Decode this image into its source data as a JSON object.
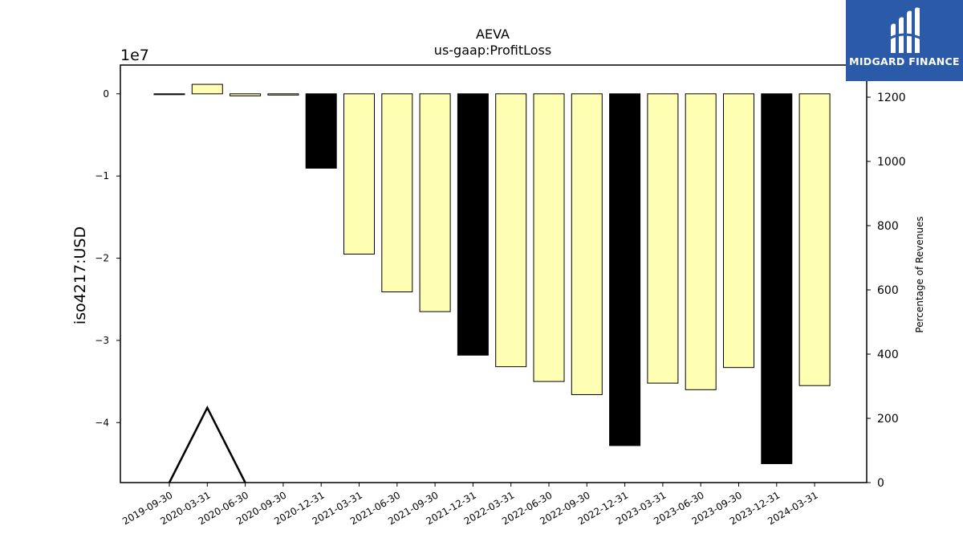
{
  "chart_data": {
    "type": "bar",
    "title": "AEVA",
    "subtitle": "us-gaap:ProfitLoss",
    "ylabel": "iso4217:USD",
    "y_offset_label": "1e7",
    "y2label": "Percentage of Revenues",
    "categories": [
      "2019-09-30",
      "2020-03-31",
      "2020-06-30",
      "2020-09-30",
      "2020-12-31",
      "2021-03-31",
      "2021-06-30",
      "2021-09-30",
      "2021-12-31",
      "2022-03-31",
      "2022-06-30",
      "2022-09-30",
      "2022-12-31",
      "2023-03-31",
      "2023-06-30",
      "2023-09-30",
      "2023-12-31",
      "2024-03-31"
    ],
    "values": [
      -100000,
      1150000,
      -250000,
      -150000,
      -9050000,
      -19500000,
      -24100000,
      -26500000,
      -31800000,
      -33200000,
      -35000000,
      -36600000,
      -42800000,
      -35200000,
      -36000000,
      -33300000,
      -45000000,
      -35500000
    ],
    "bar_colors": [
      "#ffffb3",
      "#ffffb3",
      "#ffffb3",
      "#ffffb3",
      "#000000",
      "#ffffb3",
      "#ffffb3",
      "#ffffb3",
      "#000000",
      "#ffffb3",
      "#ffffb3",
      "#ffffb3",
      "#000000",
      "#ffffb3",
      "#ffffb3",
      "#ffffb3",
      "#000000",
      "#ffffb3"
    ],
    "ylim": [
      -47300000,
      3500000
    ],
    "yticks": [
      0,
      -10000000,
      -20000000,
      -30000000,
      -40000000
    ],
    "ytick_labels": [
      "0",
      "−1",
      "−2",
      "−3",
      "−4"
    ],
    "y2lim": [
      0,
      1300
    ],
    "y2ticks": [
      0,
      200,
      400,
      600,
      800,
      1000,
      1200
    ],
    "percentage_line": {
      "x_index": [
        0,
        1,
        2
      ],
      "values": [
        0,
        233,
        0
      ],
      "color": "#000000"
    },
    "grid": false
  },
  "logo": {
    "text": "MIDGARD FINANCE",
    "color": "#2b5aa8"
  }
}
